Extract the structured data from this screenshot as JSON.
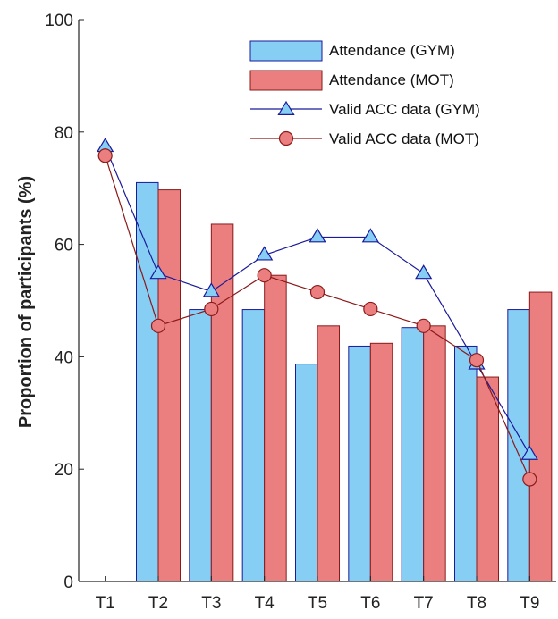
{
  "chart_data": {
    "type": "bar",
    "title": "",
    "xlabel": "",
    "ylabel": "Proportion of participants (%)",
    "ylim": [
      0,
      100
    ],
    "yticks": [
      0,
      20,
      40,
      60,
      80,
      100
    ],
    "categories": [
      "T1",
      "T2",
      "T3",
      "T4",
      "T5",
      "T6",
      "T7",
      "T8",
      "T9"
    ],
    "grid": false,
    "legend_position": "top-right",
    "series": [
      {
        "name": "Attendance (GYM)",
        "kind": "bar",
        "color": "#87CEF5",
        "edge_color": "#1a1a9a",
        "values": [
          null,
          71,
          48.4,
          48.4,
          38.7,
          41.9,
          45.2,
          41.9,
          48.4
        ]
      },
      {
        "name": "Attendance (MOT)",
        "kind": "bar",
        "color": "#EB7F7F",
        "edge_color": "#8b1a1a",
        "values": [
          null,
          69.7,
          63.6,
          54.5,
          45.5,
          42.4,
          45.5,
          36.4,
          51.5
        ]
      },
      {
        "name": "Valid ACC data (GYM)",
        "kind": "line",
        "marker": "triangle",
        "color": "#1a1a9a",
        "marker_fill": "#87CEF5",
        "values": [
          77.4,
          54.8,
          51.6,
          58.1,
          61.3,
          61.3,
          54.8,
          38.7,
          22.6
        ]
      },
      {
        "name": "Valid ACC data (MOT)",
        "kind": "line",
        "marker": "circle",
        "color": "#8b1a1a",
        "marker_fill": "#EB7F7F",
        "values": [
          75.8,
          45.5,
          48.5,
          54.5,
          51.5,
          48.5,
          45.5,
          39.4,
          18.2
        ]
      }
    ]
  }
}
